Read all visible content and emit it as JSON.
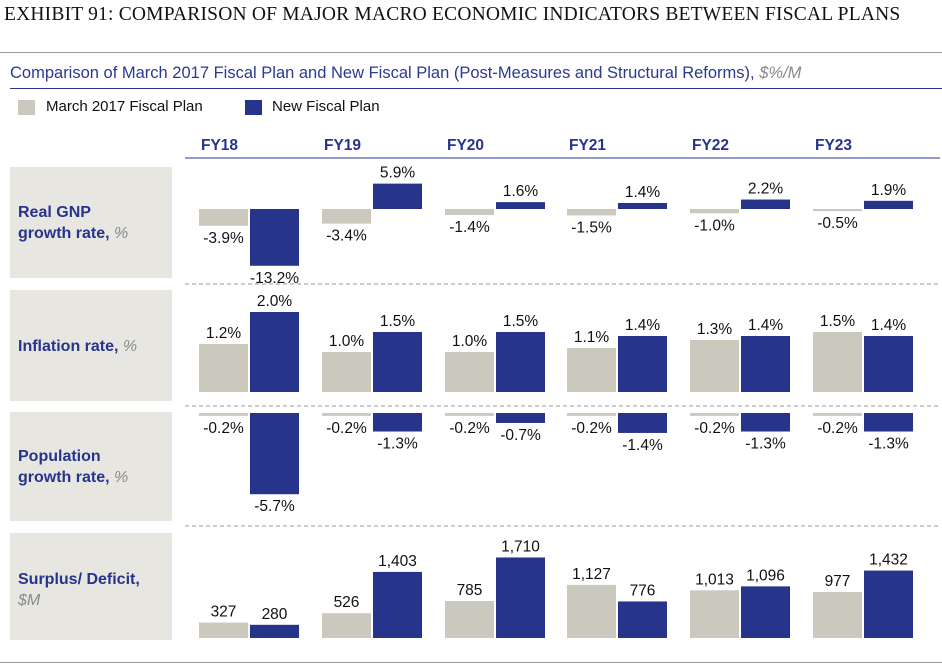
{
  "exhibit_title": "EXHIBIT 91: COMPARISON OF MAJOR MACRO ECONOMIC INDICATORS BETWEEN FISCAL PLANS",
  "subtitle": "Comparison of March 2017 Fiscal Plan and New Fiscal Plan (Post-Measures and Structural Reforms),",
  "subtitle_units": "$%/M",
  "colors": {
    "march": "#cbc8bd",
    "new": "#27348b",
    "label_blue": "#27348b",
    "panel_bg": "#e7e6e1"
  },
  "legend": [
    {
      "label": "March 2017 Fiscal Plan",
      "color": "#cbc8bd"
    },
    {
      "label": "New Fiscal Plan",
      "color": "#27348b"
    }
  ],
  "chart_data": {
    "type": "bar",
    "title": "Comparison of March 2017 Fiscal Plan and New Fiscal Plan (Post-Measures and Structural Reforms), $%/M",
    "categories": [
      "FY18",
      "FY19",
      "FY20",
      "FY21",
      "FY22",
      "FY23"
    ],
    "series_names": [
      "March 2017 Fiscal Plan",
      "New Fiscal Plan"
    ],
    "panels": [
      {
        "label": "Real GNP growth rate,",
        "unit": "%",
        "march": [
          -3.9,
          -3.4,
          -1.4,
          -1.5,
          -1.0,
          -0.5
        ],
        "new": [
          -13.2,
          5.9,
          1.6,
          1.4,
          2.2,
          1.9
        ],
        "march_labels": [
          "-3.9%",
          "-3.4%",
          "-1.4%",
          "-1.5%",
          "-1.0%",
          "-0.5%"
        ],
        "new_labels": [
          "-13.2%",
          "5.9%",
          "1.6%",
          "1.4%",
          "2.2%",
          "1.9%"
        ]
      },
      {
        "label": "Inflation rate,",
        "unit": "%",
        "march": [
          1.2,
          1.0,
          1.0,
          1.1,
          1.3,
          1.5
        ],
        "new": [
          2.0,
          1.5,
          1.5,
          1.4,
          1.4,
          1.4
        ],
        "march_labels": [
          "1.2%",
          "1.0%",
          "1.0%",
          "1.1%",
          "1.3%",
          "1.5%"
        ],
        "new_labels": [
          "2.0%",
          "1.5%",
          "1.5%",
          "1.4%",
          "1.4%",
          "1.4%"
        ]
      },
      {
        "label": "Population growth rate,",
        "unit": "%",
        "march": [
          -0.2,
          -0.2,
          -0.2,
          -0.2,
          -0.2,
          -0.2
        ],
        "new": [
          -5.7,
          -1.3,
          -0.7,
          -1.4,
          -1.3,
          -1.3
        ],
        "march_labels": [
          "-0.2%",
          "-0.2%",
          "-0.2%",
          "-0.2%",
          "-0.2%",
          "-0.2%"
        ],
        "new_labels": [
          "-5.7%",
          "-1.3%",
          "-0.7%",
          "-1.4%",
          "-1.3%",
          "-1.3%"
        ]
      },
      {
        "label": "Surplus/ Deficit,",
        "unit": "$M",
        "march": [
          327,
          526,
          785,
          1127,
          1013,
          977
        ],
        "new": [
          280,
          1403,
          1710,
          776,
          1096,
          1432
        ],
        "march_labels": [
          "327",
          "526",
          "785",
          "1,127",
          "1,013",
          "977"
        ],
        "new_labels": [
          "280",
          "1,403",
          "1,710",
          "776",
          "1,096",
          "1,432"
        ]
      }
    ]
  }
}
